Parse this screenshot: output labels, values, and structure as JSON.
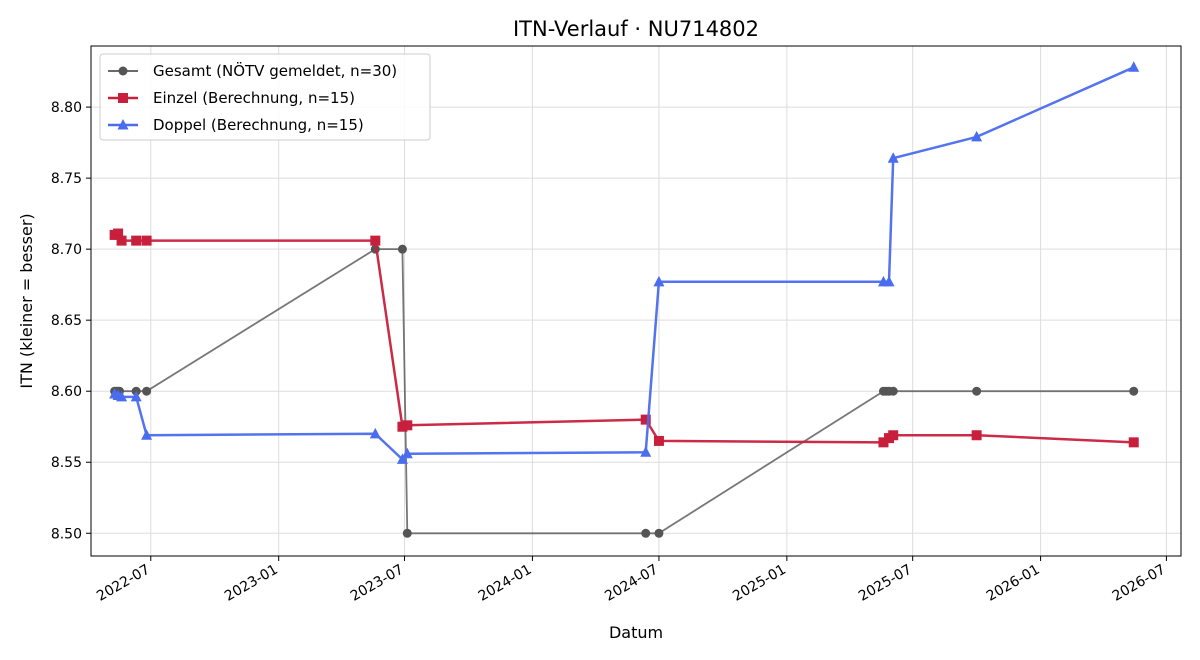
{
  "chart_data": {
    "type": "line",
    "title": "ITN-Verlauf · NU714802",
    "xlabel": "Datum",
    "ylabel": "ITN  (kleiner = besser)",
    "xlim": [
      "2022-04-06",
      "2026-07-22"
    ],
    "ylim": [
      8.484,
      8.843
    ],
    "x_ticks": [
      "2022-07",
      "2023-01",
      "2023-07",
      "2024-01",
      "2024-07",
      "2025-01",
      "2025-07",
      "2026-01",
      "2026-07"
    ],
    "y_ticks": [
      "8.50",
      "8.55",
      "8.60",
      "8.65",
      "8.70",
      "8.75",
      "8.80"
    ],
    "grid": true,
    "legend_position": "top-left",
    "series": [
      {
        "name": "Gesamt (NÖTV gemeldet, n=30)",
        "color": "#555555",
        "marker": "circle",
        "points": [
          [
            "2022-05-10",
            8.6
          ],
          [
            "2022-05-13",
            8.6
          ],
          [
            "2022-05-15",
            8.6
          ],
          [
            "2022-05-17",
            8.6
          ],
          [
            "2022-06-10",
            8.6
          ],
          [
            "2022-06-25",
            8.6
          ],
          [
            "2023-05-20",
            8.7
          ],
          [
            "2023-06-28",
            8.7
          ],
          [
            "2023-07-05",
            8.5
          ],
          [
            "2024-06-12",
            8.5
          ],
          [
            "2024-07-01",
            8.5
          ],
          [
            "2025-05-20",
            8.6
          ],
          [
            "2025-05-24",
            8.6
          ],
          [
            "2025-05-28",
            8.6
          ],
          [
            "2025-06-03",
            8.6
          ],
          [
            "2025-10-01",
            8.6
          ],
          [
            "2026-05-15",
            8.6
          ]
        ]
      },
      {
        "name": "Einzel (Berechnung, n=15)",
        "color": "#c8203c",
        "marker": "square",
        "points": [
          [
            "2022-05-10",
            8.71
          ],
          [
            "2022-05-15",
            8.711
          ],
          [
            "2022-05-20",
            8.706
          ],
          [
            "2022-06-10",
            8.706
          ],
          [
            "2022-06-25",
            8.706
          ],
          [
            "2023-05-20",
            8.706
          ],
          [
            "2023-06-28",
            8.575
          ],
          [
            "2023-07-05",
            8.576
          ],
          [
            "2024-06-12",
            8.58
          ],
          [
            "2024-07-01",
            8.565
          ],
          [
            "2025-05-20",
            8.564
          ],
          [
            "2025-05-28",
            8.567
          ],
          [
            "2025-06-03",
            8.569
          ],
          [
            "2025-10-01",
            8.569
          ],
          [
            "2026-05-15",
            8.564
          ]
        ]
      },
      {
        "name": "Doppel (Berechnung, n=15)",
        "color": "#4a6cee",
        "marker": "triangle",
        "points": [
          [
            "2022-05-10",
            8.598
          ],
          [
            "2022-05-15",
            8.597
          ],
          [
            "2022-05-20",
            8.596
          ],
          [
            "2022-06-10",
            8.596
          ],
          [
            "2022-06-25",
            8.569
          ],
          [
            "2023-05-20",
            8.57
          ],
          [
            "2023-06-28",
            8.552
          ],
          [
            "2023-07-05",
            8.556
          ],
          [
            "2024-06-12",
            8.557
          ],
          [
            "2024-07-01",
            8.677
          ],
          [
            "2025-05-20",
            8.677
          ],
          [
            "2025-05-28",
            8.677
          ],
          [
            "2025-06-03",
            8.764
          ],
          [
            "2025-10-01",
            8.779
          ],
          [
            "2026-05-15",
            8.828
          ]
        ]
      }
    ]
  }
}
